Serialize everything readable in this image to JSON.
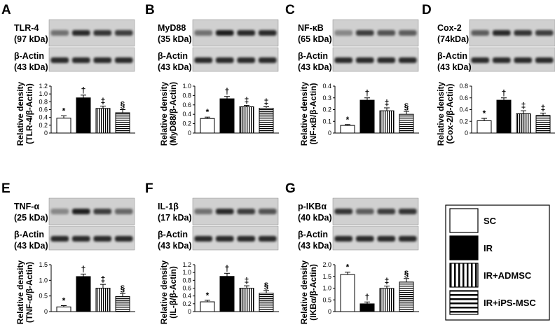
{
  "legend": {
    "items": [
      {
        "label": "SC",
        "pattern": "white"
      },
      {
        "label": "IR",
        "pattern": "black"
      },
      {
        "label": "IR+ADMSC",
        "pattern": "vertical"
      },
      {
        "label": "IR+iPS-MSC",
        "pattern": "horizontal"
      }
    ]
  },
  "panels": [
    {
      "letter": "A",
      "protein": "TLR-4",
      "kda": "(97 kDa)",
      "actin": "β-Actin",
      "actin_kda": "(43 kDa)",
      "ylabel_top": "Relative density",
      "ylabel_bottom": "(TLR-4/β-Actin)",
      "band_intensity": [
        0.45,
        0.8,
        0.75,
        0.7
      ]
    },
    {
      "letter": "B",
      "protein": "MyD88",
      "kda": "(35 kDa)",
      "actin": "β-Actin",
      "actin_kda": "(43 kDa)",
      "ylabel_top": "Relative density",
      "ylabel_bottom": "(MyD88/β-Actin)",
      "band_intensity": [
        0.45,
        0.85,
        0.8,
        0.8
      ]
    },
    {
      "letter": "C",
      "protein": "NF-κB",
      "kda": "(65 kDa)",
      "actin": "β-Actin",
      "actin_kda": "(43 kDa)",
      "ylabel_top": "Relative density",
      "ylabel_bottom": "(NF-κB/β-Actin)",
      "band_intensity": [
        0.35,
        0.7,
        0.6,
        0.55
      ]
    },
    {
      "letter": "D",
      "protein": "Cox-2",
      "kda": "(74kDa)",
      "actin": "β-Actin",
      "actin_kda": "(43 kDa)",
      "ylabel_top": "Relative density",
      "ylabel_bottom": "(Cox-2/β-Actin)",
      "band_intensity": [
        0.55,
        0.8,
        0.75,
        0.7
      ]
    },
    {
      "letter": "E",
      "protein": "TNF-α",
      "kda": "(25 kDa)",
      "actin": "β-Actin",
      "actin_kda": "(43 kDa)",
      "ylabel_top": "Relative density",
      "ylabel_bottom": "(TNF-α/β-Actin)",
      "band_intensity": [
        0.35,
        0.85,
        0.7,
        0.5
      ]
    },
    {
      "letter": "F",
      "protein": "IL-1β",
      "kda": "(17 kDa)",
      "actin": "β-Actin",
      "actin_kda": "(43 kDa)",
      "ylabel_top": "Relative density",
      "ylabel_bottom": "(IL-β/β-Actin)",
      "band_intensity": [
        0.45,
        0.8,
        0.7,
        0.6
      ]
    },
    {
      "letter": "G",
      "protein": "p-IKBα",
      "kda": "(40 kDa)",
      "actin": "β-Actin",
      "actin_kda": "(43 kDa)",
      "ylabel_top": "Relative density",
      "ylabel_bottom": "(IKBα/β-Actin)",
      "band_intensity": [
        0.75,
        0.55,
        0.7,
        0.75
      ]
    }
  ],
  "chart_data": [
    {
      "type": "bar",
      "panel": "A",
      "categories": [
        "SC",
        "IR",
        "IR+ADMSC",
        "IR+iPS-MSC"
      ],
      "values": [
        0.38,
        0.9,
        0.63,
        0.52
      ],
      "errors": [
        0.06,
        0.07,
        0.06,
        0.08
      ],
      "significance": [
        "*",
        "†",
        "‡",
        "§"
      ],
      "ylim": [
        0,
        1.2
      ],
      "yticks": [
        "0",
        "0.2",
        "0.4",
        "0.6",
        "0.8",
        "1.0",
        "1.2"
      ],
      "ytick_values": [
        0,
        0.2,
        0.4,
        0.6,
        0.8,
        1.0,
        1.2
      ],
      "ylabel": "Relative density (TLR-4/β-Actin)"
    },
    {
      "type": "bar",
      "panel": "B",
      "categories": [
        "SC",
        "IR",
        "IR+ADMSC",
        "IR+iPS-MSC"
      ],
      "values": [
        0.31,
        0.73,
        0.56,
        0.53
      ],
      "errors": [
        0.03,
        0.05,
        0.03,
        0.03
      ],
      "significance": [
        "*",
        "†",
        "‡",
        "‡"
      ],
      "ylim": [
        0,
        1.0
      ],
      "yticks": [
        "0",
        "0.2",
        "0.4",
        "0.6",
        "0.8",
        "1.0"
      ],
      "ytick_values": [
        0,
        0.2,
        0.4,
        0.6,
        0.8,
        1.0
      ],
      "ylabel": "Relative density (MyD88/β-Actin)"
    },
    {
      "type": "bar",
      "panel": "C",
      "categories": [
        "SC",
        "IR",
        "IR+ADMSC",
        "IR+iPS-MSC"
      ],
      "values": [
        0.065,
        0.28,
        0.19,
        0.16
      ],
      "errors": [
        0.008,
        0.02,
        0.025,
        0.025
      ],
      "significance": [
        "*",
        "†",
        "‡",
        "§"
      ],
      "ylim": [
        0,
        0.4
      ],
      "yticks": [
        "0",
        "0.1",
        "0.2",
        "0.3",
        "0.4"
      ],
      "ytick_values": [
        0,
        0.1,
        0.2,
        0.3,
        0.4
      ],
      "ylabel": "Relative density (NF-κB/β-Actin)"
    },
    {
      "type": "bar",
      "panel": "D",
      "categories": [
        "SC",
        "IR",
        "IR+ADMSC",
        "IR+iPS-MSC"
      ],
      "values": [
        0.21,
        0.56,
        0.33,
        0.3
      ],
      "errors": [
        0.04,
        0.04,
        0.05,
        0.04
      ],
      "significance": [
        "*",
        "†",
        "‡",
        "‡"
      ],
      "ylim": [
        0,
        0.8
      ],
      "yticks": [
        "0",
        "0.2",
        "0.4",
        "0.6",
        "0.8"
      ],
      "ytick_values": [
        0,
        0.2,
        0.4,
        0.6,
        0.8
      ],
      "ylabel": "Relative density (Cox-2/β-Actin)"
    },
    {
      "type": "bar",
      "panel": "E",
      "categories": [
        "SC",
        "IR",
        "IR+ADMSC",
        "IR+iPS-MSC"
      ],
      "values": [
        0.15,
        1.12,
        0.75,
        0.48
      ],
      "errors": [
        0.04,
        0.08,
        0.12,
        0.1
      ],
      "significance": [
        "*",
        "†",
        "‡",
        "§"
      ],
      "ylim": [
        0,
        1.5
      ],
      "yticks": [
        "0",
        "0.5",
        "1.0",
        "1.5"
      ],
      "ytick_values": [
        0,
        0.5,
        1.0,
        1.5
      ],
      "ylabel": "Relative density (TNF-α/β-Actin)"
    },
    {
      "type": "bar",
      "panel": "F",
      "categories": [
        "SC",
        "IR",
        "IR+ADMSC",
        "IR+iPS-MSC"
      ],
      "values": [
        0.25,
        0.9,
        0.6,
        0.47
      ],
      "errors": [
        0.04,
        0.08,
        0.06,
        0.07
      ],
      "significance": [
        "*",
        "†",
        "‡",
        "§"
      ],
      "ylim": [
        0,
        1.2
      ],
      "yticks": [
        "0",
        "0.2",
        "0.4",
        "0.6",
        "0.8",
        "1.0",
        "1.2"
      ],
      "ytick_values": [
        0,
        0.2,
        0.4,
        0.6,
        0.8,
        1.0,
        1.2
      ],
      "ylabel": "Relative density (IL-β/β-Actin)"
    },
    {
      "type": "bar",
      "panel": "G",
      "categories": [
        "SC",
        "IR",
        "IR+ADMSC",
        "IR+iPS-MSC"
      ],
      "values": [
        1.58,
        0.33,
        0.99,
        1.26
      ],
      "errors": [
        0.1,
        0.08,
        0.1,
        0.15
      ],
      "significance": [
        "*",
        "†",
        "‡",
        "§"
      ],
      "ylim": [
        0,
        2.0
      ],
      "yticks": [
        "0",
        "0.5",
        "1.0",
        "1.5",
        "2.0"
      ],
      "ytick_values": [
        0,
        0.5,
        1.0,
        1.5,
        2.0
      ],
      "ylabel": "Relative density (IKBα/β-Actin)"
    }
  ]
}
